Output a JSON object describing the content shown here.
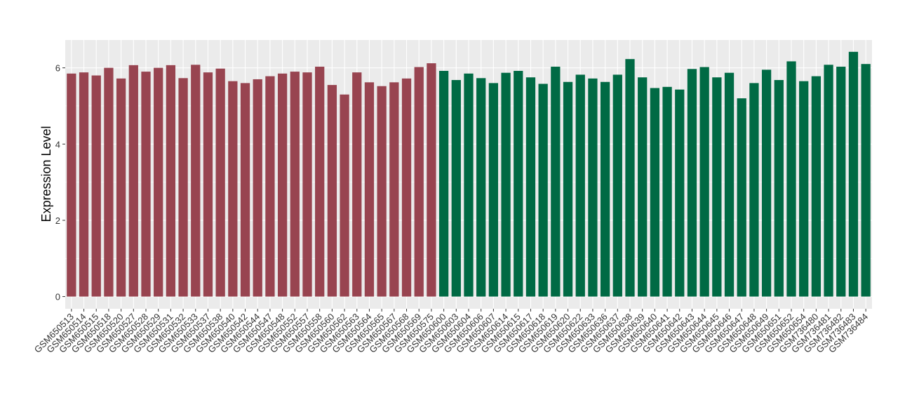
{
  "chart_data": {
    "type": "bar",
    "y_label": "Expression Level",
    "categories": [
      "GSM650513",
      "GSM650514",
      "GSM650515",
      "GSM650518",
      "GSM650520",
      "GSM650527",
      "GSM650528",
      "GSM650529",
      "GSM650531",
      "GSM650532",
      "GSM650533",
      "GSM650537",
      "GSM650538",
      "GSM650540",
      "GSM650542",
      "GSM650544",
      "GSM650547",
      "GSM650548",
      "GSM650552",
      "GSM650557",
      "GSM650558",
      "GSM650560",
      "GSM650562",
      "GSM650563",
      "GSM650564",
      "GSM650565",
      "GSM650567",
      "GSM650568",
      "GSM650569",
      "GSM650575",
      "GSM650600",
      "GSM650603",
      "GSM650604",
      "GSM650606",
      "GSM650607",
      "GSM650614",
      "GSM650615",
      "GSM650617",
      "GSM650618",
      "GSM650619",
      "GSM650620",
      "GSM650622",
      "GSM650633",
      "GSM650636",
      "GSM650637",
      "GSM650638",
      "GSM650639",
      "GSM650640",
      "GSM650641",
      "GSM650642",
      "GSM650643",
      "GSM650644",
      "GSM650645",
      "GSM650646",
      "GSM650647",
      "GSM650648",
      "GSM650649",
      "GSM650651",
      "GSM650652",
      "GSM650654",
      "GSM736480",
      "GSM736481",
      "GSM736482",
      "GSM736483",
      "GSM736484"
    ],
    "series": [
      {
        "color": "#984450",
        "values": [
          5.85,
          5.88,
          5.8,
          6.0,
          5.72,
          6.07,
          5.9,
          6.0,
          6.07,
          5.73,
          6.08,
          5.88,
          5.98,
          5.65,
          5.6,
          5.7,
          5.78,
          5.85,
          5.9,
          5.88,
          6.03,
          5.55,
          5.3,
          5.88,
          5.62,
          5.52,
          5.62,
          5.72,
          6.02,
          6.12,
          null,
          null,
          null,
          null,
          null,
          null,
          null,
          null,
          null,
          null,
          null,
          null,
          null,
          null,
          null,
          null,
          null,
          null,
          null,
          null,
          null,
          null,
          null,
          null,
          null,
          null,
          null,
          null,
          null,
          null,
          null,
          null,
          null,
          null,
          null
        ]
      },
      {
        "color": "#006a44",
        "values": [
          null,
          null,
          null,
          null,
          null,
          null,
          null,
          null,
          null,
          null,
          null,
          null,
          null,
          null,
          null,
          null,
          null,
          null,
          null,
          null,
          null,
          null,
          null,
          null,
          null,
          null,
          null,
          null,
          null,
          null,
          5.92,
          5.68,
          5.85,
          5.73,
          5.6,
          5.87,
          5.92,
          5.75,
          5.58,
          6.03,
          5.63,
          5.82,
          5.72,
          5.63,
          5.82,
          6.23,
          5.75,
          5.47,
          5.5,
          5.43,
          5.97,
          6.02,
          5.75,
          5.87,
          5.2,
          5.6,
          5.95,
          5.68,
          6.17,
          5.65,
          5.78,
          6.08,
          6.03,
          6.42,
          6.1
        ]
      }
    ],
    "ylim": [
      -0.32,
      6.73
    ],
    "yticks": [
      0,
      2,
      4,
      6
    ],
    "grid": true
  }
}
